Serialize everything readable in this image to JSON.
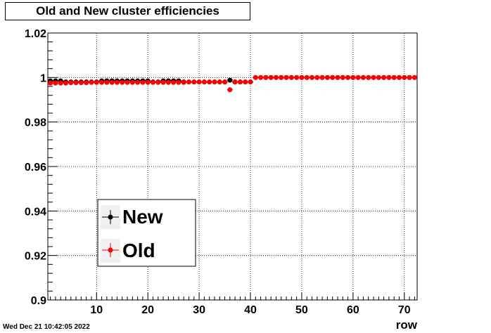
{
  "chart_data": {
    "type": "scatter",
    "title": "Old and New cluster efficiencies",
    "xlabel": "row",
    "ylabel": "",
    "xlim": [
      0.5,
      72.5
    ],
    "ylim": [
      0.9,
      1.02
    ],
    "xticks": [
      10,
      20,
      30,
      40,
      50,
      60,
      70
    ],
    "yticks": [
      0.9,
      0.92,
      0.94,
      0.96,
      0.98,
      1,
      1.02
    ],
    "ytick_labels": [
      "0.9",
      "0.92",
      "0.94",
      "0.96",
      "0.98",
      "1",
      "1.02"
    ],
    "grid": true,
    "legend_position": "bottom-left",
    "series": [
      {
        "name": "New",
        "color": "#000000",
        "x": [
          1,
          2,
          3,
          4,
          5,
          6,
          7,
          8,
          9,
          10,
          11,
          12,
          13,
          14,
          15,
          16,
          17,
          18,
          19,
          20,
          21,
          22,
          23,
          24,
          25,
          26,
          27,
          28,
          29,
          30,
          31,
          32,
          33,
          34,
          35,
          36,
          37,
          38,
          39,
          40,
          41,
          42,
          43,
          44,
          45,
          46,
          47,
          48,
          49,
          50,
          51,
          52,
          53,
          54,
          55,
          56,
          57,
          58,
          59,
          60,
          61,
          62,
          63,
          64,
          65,
          66,
          67,
          68,
          69,
          70,
          71,
          72
        ],
        "y": [
          0.9985,
          0.9985,
          0.9985,
          0.998,
          0.998,
          0.998,
          0.998,
          0.998,
          0.998,
          0.998,
          0.9985,
          0.9985,
          0.9985,
          0.9985,
          0.9985,
          0.9985,
          0.9985,
          0.9985,
          0.9985,
          0.9985,
          0.998,
          0.998,
          0.9985,
          0.9985,
          0.9985,
          0.9985,
          0.998,
          0.998,
          0.998,
          0.998,
          0.998,
          0.998,
          0.998,
          0.998,
          0.998,
          0.9988,
          0.998,
          0.998,
          0.998,
          0.998,
          1,
          1,
          1,
          1,
          1,
          1,
          1,
          1,
          1,
          1,
          1,
          1,
          1,
          1,
          1,
          1,
          1,
          1,
          1,
          1,
          1,
          1,
          1,
          1,
          1,
          1,
          1,
          1,
          1,
          1,
          1,
          1
        ]
      },
      {
        "name": "Old",
        "color": "#ff0000",
        "x": [
          1,
          2,
          3,
          4,
          5,
          6,
          7,
          8,
          9,
          10,
          11,
          12,
          13,
          14,
          15,
          16,
          17,
          18,
          19,
          20,
          21,
          22,
          23,
          24,
          25,
          26,
          27,
          28,
          29,
          30,
          31,
          32,
          33,
          34,
          35,
          36,
          37,
          38,
          39,
          40,
          41,
          42,
          43,
          44,
          45,
          46,
          47,
          48,
          49,
          50,
          51,
          52,
          53,
          54,
          55,
          56,
          57,
          58,
          59,
          60,
          61,
          62,
          63,
          64,
          65,
          66,
          67,
          68,
          69,
          70,
          71,
          72
        ],
        "y": [
          0.9975,
          0.9975,
          0.9975,
          0.9975,
          0.9977,
          0.9977,
          0.9977,
          0.9977,
          0.9978,
          0.9978,
          0.9978,
          0.9978,
          0.9978,
          0.9978,
          0.9978,
          0.9978,
          0.9978,
          0.9978,
          0.9978,
          0.9978,
          0.9978,
          0.9978,
          0.9978,
          0.9978,
          0.9978,
          0.9978,
          0.9978,
          0.998,
          0.998,
          0.998,
          0.998,
          0.998,
          0.998,
          0.998,
          0.998,
          0.9945,
          0.998,
          0.998,
          0.998,
          0.998,
          1,
          1,
          1,
          1,
          1,
          1,
          1,
          1,
          1,
          1,
          1,
          1,
          1,
          1,
          1,
          1,
          1,
          1,
          1,
          1,
          1,
          1,
          1,
          1,
          1,
          1,
          1,
          1,
          1,
          1,
          1,
          1
        ]
      }
    ]
  },
  "footer": {
    "timestamp": "Wed Dec 21 10:42:05 2022"
  }
}
